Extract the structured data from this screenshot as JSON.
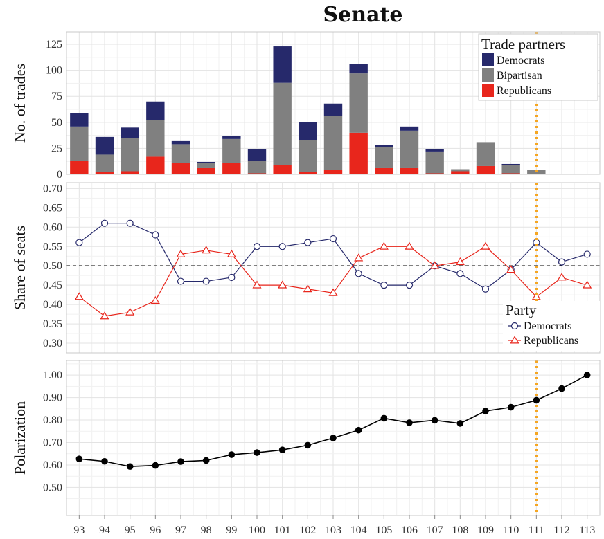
{
  "title": "Senate",
  "colors": {
    "democrats": "#26296b",
    "bipartisan": "#808080",
    "republicans": "#e8261c",
    "marker_line": "#f5a623",
    "polar": "#000000",
    "grid_major": "#e3e3e3",
    "grid_minor": "#f1f1f1",
    "panel_border": "#c8c8c8"
  },
  "chart_data": [
    {
      "type": "bar",
      "stacked": true,
      "categories": [
        "93",
        "94",
        "95",
        "96",
        "97",
        "98",
        "99",
        "100",
        "101",
        "102",
        "103",
        "104",
        "105",
        "106",
        "107",
        "108",
        "109",
        "110",
        "111",
        "112",
        "113"
      ],
      "ylabel": "No. of trades",
      "ylim": [
        0,
        137
      ],
      "yticks": [
        0,
        25,
        50,
        75,
        100,
        125
      ],
      "legend_title": "Trade partners",
      "legend_position": "top-right",
      "series": [
        {
          "name": "Republicans",
          "values": [
            13,
            2,
            3,
            17,
            11,
            6,
            11,
            1,
            9,
            2,
            4,
            40,
            6,
            6,
            1,
            3,
            8,
            1,
            0,
            0,
            0
          ]
        },
        {
          "name": "Bipartisan",
          "values": [
            33,
            17,
            32,
            35,
            18,
            5,
            23,
            12,
            79,
            31,
            52,
            57,
            20,
            36,
            21,
            2,
            23,
            8,
            4,
            0,
            0
          ]
        },
        {
          "name": "Democrats",
          "values": [
            13,
            17,
            10,
            18,
            3,
            1,
            3,
            11,
            35,
            17,
            12,
            9,
            2,
            4,
            2,
            0,
            0,
            1,
            0,
            0,
            0
          ]
        }
      ],
      "legend_order": [
        "Democrats",
        "Bipartisan",
        "Republicans"
      ],
      "vline_at": "111"
    },
    {
      "type": "line",
      "categories": [
        "93",
        "94",
        "95",
        "96",
        "97",
        "98",
        "99",
        "100",
        "101",
        "102",
        "103",
        "104",
        "105",
        "106",
        "107",
        "108",
        "109",
        "110",
        "111",
        "112",
        "113"
      ],
      "ylabel": "Share of seats",
      "ylim": [
        0.275,
        0.715
      ],
      "yticks": [
        "0.30",
        "0.35",
        "0.40",
        "0.45",
        "0.50",
        "0.55",
        "0.60",
        "0.65",
        "0.70"
      ],
      "hline": 0.5,
      "legend_title": "Party",
      "legend_position": "bottom-right",
      "series": [
        {
          "name": "Democrats",
          "marker": "circle",
          "values": [
            0.56,
            0.61,
            0.61,
            0.58,
            0.46,
            0.46,
            0.47,
            0.55,
            0.55,
            0.56,
            0.57,
            0.48,
            0.45,
            0.45,
            0.5,
            0.48,
            0.44,
            0.49,
            0.56,
            0.51,
            0.53
          ]
        },
        {
          "name": "Republicans",
          "marker": "triangle",
          "values": [
            0.42,
            0.37,
            0.38,
            0.41,
            0.53,
            0.54,
            0.53,
            0.45,
            0.45,
            0.44,
            0.43,
            0.52,
            0.55,
            0.55,
            0.5,
            0.51,
            0.55,
            0.49,
            0.42,
            0.47,
            0.45
          ]
        }
      ],
      "vline_at": "111"
    },
    {
      "type": "line",
      "categories": [
        "93",
        "94",
        "95",
        "96",
        "97",
        "98",
        "99",
        "100",
        "101",
        "102",
        "103",
        "104",
        "105",
        "106",
        "107",
        "108",
        "109",
        "110",
        "111",
        "112",
        "113"
      ],
      "ylabel": "Polarization",
      "ylim": [
        0.375,
        1.065
      ],
      "yticks": [
        "0.50",
        "0.60",
        "0.70",
        "0.80",
        "0.90",
        "1.00"
      ],
      "series": [
        {
          "name": "Polarization",
          "marker": "dot",
          "values": [
            0.627,
            0.616,
            0.593,
            0.598,
            0.615,
            0.62,
            0.646,
            0.655,
            0.667,
            0.688,
            0.72,
            0.755,
            0.808,
            0.788,
            0.799,
            0.785,
            0.84,
            0.857,
            0.888,
            0.94,
            1.0
          ]
        }
      ],
      "vline_at": "111"
    }
  ]
}
